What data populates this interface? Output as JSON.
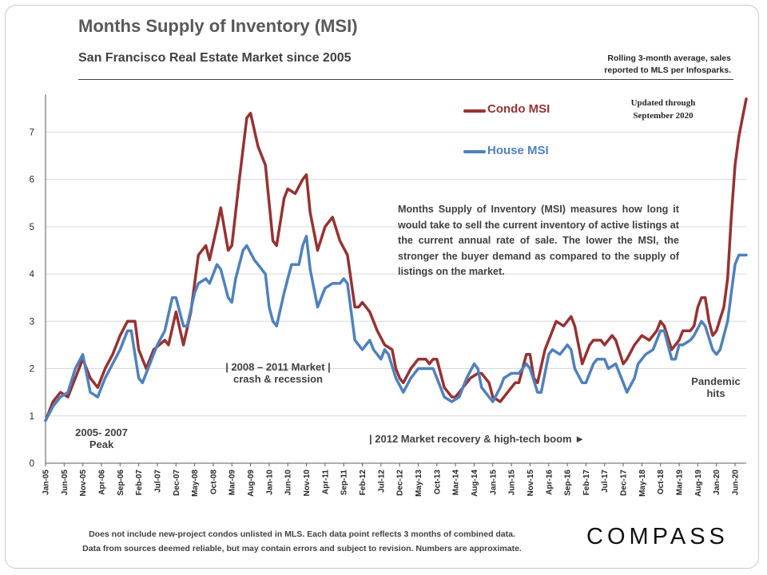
{
  "header": {
    "title": "Months Supply of Inventory (MSI)",
    "subtitle": "San Francisco Real Estate Market since 2005",
    "source_note_line1": "Rolling 3-month average, sales",
    "source_note_line2": "reported to MLS per Infosparks.",
    "updated_line1": "Updated through",
    "updated_line2": "September 2020"
  },
  "legend": [
    {
      "label": "Condo MSI",
      "color": "#963232"
    },
    {
      "label": "House MSI",
      "color": "#4f81bd"
    }
  ],
  "definition": "Months Supply of Inventory (MSI) measures how long it would take to sell the current inventory of active listings at the current annual rate of sale. The lower the MSI, the stronger the buyer demand as compared to the supply of listings on the market.",
  "annotations": {
    "peak_line1": "2005- 2007",
    "peak_line2": "Peak",
    "crash_line1": "|  2008 – 2011 Market  |",
    "crash_line2": "crash & recession",
    "recovery": "| 2012 Market recovery & high-tech boom ►",
    "pandemic_line1": "Pandemic",
    "pandemic_line2": "hits"
  },
  "footer": {
    "line1": "Does not include new-project condos unlisted in MLS. Each data point reflects 3 months of combined data.",
    "line2": "Data from sources deemed reliable, but may contain errors and subject to revision. Numbers are approximate."
  },
  "brand": {
    "logo": "COMPASS"
  },
  "chart_data": {
    "type": "line",
    "title": "Months Supply of Inventory (MSI)",
    "subtitle": "San Francisco Real Estate Market since 2005",
    "ylim": [
      0,
      7.8
    ],
    "yticks": [
      0,
      1,
      2,
      3,
      4,
      5,
      6,
      7
    ],
    "grid": true,
    "legend_position": "top-right",
    "x_start": "Jan-05",
    "x_end": "Sep-20",
    "x_tick_labels": [
      "Jan-05",
      "Jun-05",
      "Nov-05",
      "Apr-06",
      "Sep-06",
      "Feb-07",
      "Jul-07",
      "Dec-07",
      "May-08",
      "Oct-08",
      "Mar-09",
      "Aug-09",
      "Jan-10",
      "Jun-10",
      "Nov-10",
      "Apr-11",
      "Sep-11",
      "Feb-12",
      "Jul-12",
      "Dec-12",
      "May-13",
      "Oct-13",
      "Mar-14",
      "Aug-14",
      "Jan-15",
      "Jun-15",
      "Nov-15",
      "Apr-16",
      "Sep-16",
      "Feb-17",
      "Jul-17",
      "Dec-17",
      "May-18",
      "Oct-18",
      "Mar-19",
      "Aug-19",
      "Jan-20",
      "Jun-20"
    ],
    "series": [
      {
        "name": "Condo MSI",
        "color": "#963232",
        "points": [
          [
            "Jan-05",
            0.9
          ],
          [
            "Mar-05",
            1.3
          ],
          [
            "May-05",
            1.5
          ],
          [
            "Jul-05",
            1.4
          ],
          [
            "Sep-05",
            1.8
          ],
          [
            "Nov-05",
            2.2
          ],
          [
            "Jan-06",
            1.8
          ],
          [
            "Mar-06",
            1.6
          ],
          [
            "May-06",
            2.0
          ],
          [
            "Jul-06",
            2.3
          ],
          [
            "Sep-06",
            2.7
          ],
          [
            "Nov-06",
            3.0
          ],
          [
            "Jan-07",
            3.0
          ],
          [
            "Feb-07",
            2.4
          ],
          [
            "Apr-07",
            2.0
          ],
          [
            "Jun-07",
            2.4
          ],
          [
            "Sep-07",
            2.6
          ],
          [
            "Oct-07",
            2.5
          ],
          [
            "Dec-07",
            3.2
          ],
          [
            "Feb-08",
            2.5
          ],
          [
            "Apr-08",
            3.2
          ],
          [
            "Jun-08",
            4.4
          ],
          [
            "Aug-08",
            4.6
          ],
          [
            "Sep-08",
            4.3
          ],
          [
            "Nov-08",
            5.0
          ],
          [
            "Dec-08",
            5.4
          ],
          [
            "Feb-09",
            4.5
          ],
          [
            "Mar-09",
            4.6
          ],
          [
            "May-09",
            6.0
          ],
          [
            "Jul-09",
            7.3
          ],
          [
            "Aug-09",
            7.4
          ],
          [
            "Oct-09",
            6.7
          ],
          [
            "Dec-09",
            6.3
          ],
          [
            "Feb-10",
            4.7
          ],
          [
            "Mar-10",
            4.6
          ],
          [
            "May-10",
            5.6
          ],
          [
            "Jun-10",
            5.8
          ],
          [
            "Aug-10",
            5.7
          ],
          [
            "Oct-10",
            6.0
          ],
          [
            "Nov-10",
            6.1
          ],
          [
            "Dec-10",
            5.3
          ],
          [
            "Feb-11",
            4.5
          ],
          [
            "Apr-11",
            5.0
          ],
          [
            "Jun-11",
            5.2
          ],
          [
            "Aug-11",
            4.7
          ],
          [
            "Oct-11",
            4.4
          ],
          [
            "Dec-11",
            3.3
          ],
          [
            "Jan-12",
            3.3
          ],
          [
            "Feb-12",
            3.4
          ],
          [
            "Apr-12",
            3.2
          ],
          [
            "Jun-12",
            2.8
          ],
          [
            "Aug-12",
            2.5
          ],
          [
            "Oct-12",
            2.4
          ],
          [
            "Nov-12",
            2.0
          ],
          [
            "Dec-12",
            1.8
          ],
          [
            "Jan-13",
            1.7
          ],
          [
            "Mar-13",
            2.0
          ],
          [
            "May-13",
            2.2
          ],
          [
            "Jul-13",
            2.2
          ],
          [
            "Aug-13",
            2.1
          ],
          [
            "Sep-13",
            2.2
          ],
          [
            "Oct-13",
            2.2
          ],
          [
            "Dec-13",
            1.6
          ],
          [
            "Feb-14",
            1.4
          ],
          [
            "Mar-14",
            1.4
          ],
          [
            "May-14",
            1.6
          ],
          [
            "Jul-14",
            1.8
          ],
          [
            "Sep-14",
            1.9
          ],
          [
            "Oct-14",
            1.9
          ],
          [
            "Dec-14",
            1.7
          ],
          [
            "Jan-15",
            1.4
          ],
          [
            "Mar-15",
            1.3
          ],
          [
            "May-15",
            1.5
          ],
          [
            "Jul-15",
            1.7
          ],
          [
            "Aug-15",
            1.7
          ],
          [
            "Oct-15",
            2.3
          ],
          [
            "Nov-15",
            2.3
          ],
          [
            "Dec-15",
            1.8
          ],
          [
            "Jan-16",
            1.7
          ],
          [
            "Mar-16",
            2.4
          ],
          [
            "Apr-16",
            2.6
          ],
          [
            "Jun-16",
            3.0
          ],
          [
            "Aug-16",
            2.9
          ],
          [
            "Sep-16",
            3.0
          ],
          [
            "Oct-16",
            3.1
          ],
          [
            "Nov-16",
            2.9
          ],
          [
            "Jan-17",
            2.1
          ],
          [
            "Mar-17",
            2.5
          ],
          [
            "Apr-17",
            2.6
          ],
          [
            "Jun-17",
            2.6
          ],
          [
            "Jul-17",
            2.5
          ],
          [
            "Sep-17",
            2.7
          ],
          [
            "Oct-17",
            2.6
          ],
          [
            "Dec-17",
            2.1
          ],
          [
            "Jan-18",
            2.2
          ],
          [
            "Mar-18",
            2.5
          ],
          [
            "May-18",
            2.7
          ],
          [
            "Jul-18",
            2.6
          ],
          [
            "Sep-18",
            2.8
          ],
          [
            "Oct-18",
            3.0
          ],
          [
            "Nov-18",
            2.9
          ],
          [
            "Jan-19",
            2.4
          ],
          [
            "Mar-19",
            2.6
          ],
          [
            "Apr-19",
            2.8
          ],
          [
            "Jun-19",
            2.8
          ],
          [
            "Jul-19",
            2.9
          ],
          [
            "Aug-19",
            3.3
          ],
          [
            "Sep-19",
            3.5
          ],
          [
            "Oct-19",
            3.5
          ],
          [
            "Nov-19",
            3.0
          ],
          [
            "Dec-19",
            2.7
          ],
          [
            "Jan-20",
            2.8
          ],
          [
            "Mar-20",
            3.3
          ],
          [
            "Apr-20",
            3.9
          ],
          [
            "May-20",
            5.2
          ],
          [
            "Jun-20",
            6.3
          ],
          [
            "Jul-20",
            6.9
          ],
          [
            "Aug-20",
            7.3
          ],
          [
            "Sep-20",
            7.7
          ]
        ]
      },
      {
        "name": "House MSI",
        "color": "#4f81bd",
        "points": [
          [
            "Jan-05",
            0.9
          ],
          [
            "Mar-05",
            1.2
          ],
          [
            "May-05",
            1.4
          ],
          [
            "Jul-05",
            1.5
          ],
          [
            "Sep-05",
            2.0
          ],
          [
            "Nov-05",
            2.3
          ],
          [
            "Dec-05",
            1.9
          ],
          [
            "Jan-06",
            1.5
          ],
          [
            "Mar-06",
            1.4
          ],
          [
            "May-06",
            1.8
          ],
          [
            "Jul-06",
            2.1
          ],
          [
            "Sep-06",
            2.4
          ],
          [
            "Nov-06",
            2.8
          ],
          [
            "Dec-06",
            2.8
          ],
          [
            "Feb-07",
            1.8
          ],
          [
            "Mar-07",
            1.7
          ],
          [
            "May-07",
            2.1
          ],
          [
            "Jul-07",
            2.5
          ],
          [
            "Sep-07",
            2.8
          ],
          [
            "Nov-07",
            3.5
          ],
          [
            "Dec-07",
            3.5
          ],
          [
            "Feb-08",
            2.9
          ],
          [
            "Mar-08",
            2.9
          ],
          [
            "May-08",
            3.6
          ],
          [
            "Jun-08",
            3.8
          ],
          [
            "Aug-08",
            3.9
          ],
          [
            "Sep-08",
            3.8
          ],
          [
            "Nov-08",
            4.2
          ],
          [
            "Dec-08",
            4.1
          ],
          [
            "Feb-09",
            3.5
          ],
          [
            "Mar-09",
            3.4
          ],
          [
            "Apr-09",
            3.9
          ],
          [
            "Jun-09",
            4.5
          ],
          [
            "Jul-09",
            4.6
          ],
          [
            "Sep-09",
            4.3
          ],
          [
            "Oct-09",
            4.2
          ],
          [
            "Dec-09",
            4.0
          ],
          [
            "Jan-10",
            3.3
          ],
          [
            "Feb-10",
            3.0
          ],
          [
            "Mar-10",
            2.9
          ],
          [
            "May-10",
            3.6
          ],
          [
            "Jun-10",
            3.9
          ],
          [
            "Jul-10",
            4.2
          ],
          [
            "Sep-10",
            4.2
          ],
          [
            "Oct-10",
            4.6
          ],
          [
            "Nov-10",
            4.8
          ],
          [
            "Dec-10",
            4.1
          ],
          [
            "Feb-11",
            3.3
          ],
          [
            "Apr-11",
            3.7
          ],
          [
            "Jun-11",
            3.8
          ],
          [
            "Aug-11",
            3.8
          ],
          [
            "Sep-11",
            3.9
          ],
          [
            "Oct-11",
            3.8
          ],
          [
            "Dec-11",
            2.6
          ],
          [
            "Feb-12",
            2.4
          ],
          [
            "Apr-12",
            2.6
          ],
          [
            "May-12",
            2.4
          ],
          [
            "Jul-12",
            2.2
          ],
          [
            "Aug-12",
            2.4
          ],
          [
            "Sep-12",
            2.3
          ],
          [
            "Nov-12",
            1.8
          ],
          [
            "Jan-13",
            1.5
          ],
          [
            "Mar-13",
            1.8
          ],
          [
            "May-13",
            2.0
          ],
          [
            "Jul-13",
            2.0
          ],
          [
            "Sep-13",
            2.0
          ],
          [
            "Oct-13",
            1.8
          ],
          [
            "Dec-13",
            1.4
          ],
          [
            "Feb-14",
            1.3
          ],
          [
            "Apr-14",
            1.4
          ],
          [
            "Jun-14",
            1.8
          ],
          [
            "Aug-14",
            2.1
          ],
          [
            "Sep-14",
            2.0
          ],
          [
            "Oct-14",
            1.6
          ],
          [
            "Dec-14",
            1.4
          ],
          [
            "Jan-15",
            1.3
          ],
          [
            "Mar-15",
            1.6
          ],
          [
            "Apr-15",
            1.8
          ],
          [
            "Jun-15",
            1.9
          ],
          [
            "Aug-15",
            1.9
          ],
          [
            "Oct-15",
            2.1
          ],
          [
            "Nov-15",
            2.0
          ],
          [
            "Jan-16",
            1.5
          ],
          [
            "Feb-16",
            1.5
          ],
          [
            "Apr-16",
            2.3
          ],
          [
            "May-16",
            2.4
          ],
          [
            "Jul-16",
            2.3
          ],
          [
            "Sep-16",
            2.5
          ],
          [
            "Oct-16",
            2.4
          ],
          [
            "Nov-16",
            2.0
          ],
          [
            "Jan-17",
            1.7
          ],
          [
            "Feb-17",
            1.7
          ],
          [
            "Apr-17",
            2.1
          ],
          [
            "May-17",
            2.2
          ],
          [
            "Jul-17",
            2.2
          ],
          [
            "Aug-17",
            2.0
          ],
          [
            "Oct-17",
            2.1
          ],
          [
            "Dec-17",
            1.7
          ],
          [
            "Jan-18",
            1.5
          ],
          [
            "Mar-18",
            1.8
          ],
          [
            "Apr-18",
            2.1
          ],
          [
            "Jun-18",
            2.3
          ],
          [
            "Aug-18",
            2.4
          ],
          [
            "Oct-18",
            2.8
          ],
          [
            "Nov-18",
            2.8
          ],
          [
            "Jan-19",
            2.2
          ],
          [
            "Feb-19",
            2.2
          ],
          [
            "Mar-19",
            2.5
          ],
          [
            "Apr-19",
            2.5
          ],
          [
            "Jun-19",
            2.6
          ],
          [
            "Jul-19",
            2.7
          ],
          [
            "Sep-19",
            3.0
          ],
          [
            "Oct-19",
            2.9
          ],
          [
            "Dec-19",
            2.4
          ],
          [
            "Jan-20",
            2.3
          ],
          [
            "Feb-20",
            2.4
          ],
          [
            "Apr-20",
            3.0
          ],
          [
            "May-20",
            3.6
          ],
          [
            "Jun-20",
            4.2
          ],
          [
            "Jul-20",
            4.4
          ],
          [
            "Aug-20",
            4.4
          ],
          [
            "Sep-20",
            4.4
          ]
        ]
      }
    ]
  }
}
